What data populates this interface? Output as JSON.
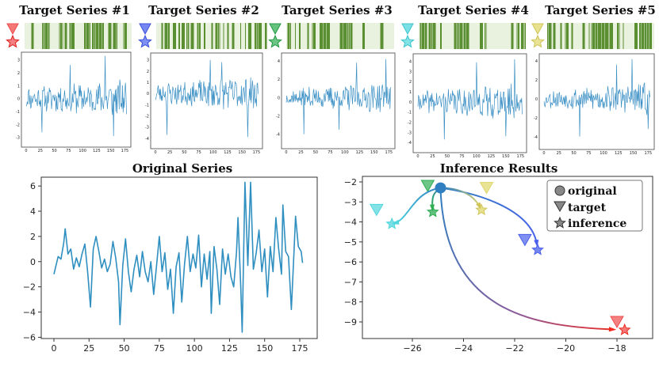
{
  "panels": [
    {
      "title": "Target Series #1",
      "color": "#ef4b4b"
    },
    {
      "title": "Target Series #2",
      "color": "#4a5fec"
    },
    {
      "title": "Target Series #3",
      "color": "#2fae52"
    },
    {
      "title": "Target Series #4",
      "color": "#4fd6dc"
    },
    {
      "title": "Target Series #5",
      "color": "#e0d76a"
    }
  ],
  "barcode_colors": {
    "dark": "#5a8f32",
    "light": "#e9f1df"
  },
  "chart_data": [
    {
      "type": "line",
      "title": "Original Series",
      "x_start": 0,
      "x_end": 178,
      "xticks": [
        0,
        25,
        50,
        75,
        100,
        125,
        150,
        175
      ],
      "yticks": [
        -6,
        -4,
        -2,
        0,
        2,
        4,
        6
      ],
      "ylim": [
        -6.1,
        6.7
      ],
      "line_color": "#2f8fc0",
      "anchors": [
        [
          0,
          -1.0
        ],
        [
          3,
          0.4
        ],
        [
          5,
          0.2
        ],
        [
          7,
          1.5
        ],
        [
          8,
          2.6
        ],
        [
          10,
          0.6
        ],
        [
          12,
          1.0
        ],
        [
          14,
          -0.6
        ],
        [
          16,
          0.3
        ],
        [
          18,
          -0.4
        ],
        [
          20,
          0.6
        ],
        [
          22,
          1.4
        ],
        [
          24,
          -0.8
        ],
        [
          26,
          -3.6
        ],
        [
          28,
          1.0
        ],
        [
          30,
          2.0
        ],
        [
          32,
          0.8
        ],
        [
          34,
          -0.5
        ],
        [
          36,
          0.2
        ],
        [
          38,
          -0.8
        ],
        [
          40,
          -0.2
        ],
        [
          42,
          1.6
        ],
        [
          44,
          0.3
        ],
        [
          46,
          -1.6
        ],
        [
          47,
          -5.0
        ],
        [
          49,
          -0.3
        ],
        [
          51,
          1.8
        ],
        [
          53,
          -0.8
        ],
        [
          55,
          -2.4
        ],
        [
          57,
          -0.6
        ],
        [
          59,
          0.5
        ],
        [
          61,
          -1.2
        ],
        [
          63,
          0.8
        ],
        [
          65,
          -0.8
        ],
        [
          67,
          -1.6
        ],
        [
          69,
          0.0
        ],
        [
          71,
          -2.6
        ],
        [
          73,
          -0.4
        ],
        [
          75,
          2.0
        ],
        [
          77,
          -0.8
        ],
        [
          79,
          0.7
        ],
        [
          81,
          -2.2
        ],
        [
          83,
          -0.6
        ],
        [
          85,
          -4.1
        ],
        [
          87,
          -0.4
        ],
        [
          89,
          0.7
        ],
        [
          91,
          -3.2
        ],
        [
          93,
          -0.2
        ],
        [
          95,
          2.0
        ],
        [
          97,
          -0.8
        ],
        [
          99,
          0.6
        ],
        [
          101,
          -0.5
        ],
        [
          103,
          2.1
        ],
        [
          105,
          -2.0
        ],
        [
          107,
          0.6
        ],
        [
          109,
          -1.4
        ],
        [
          111,
          0.8
        ],
        [
          112,
          -4.1
        ],
        [
          114,
          1.2
        ],
        [
          116,
          -0.6
        ],
        [
          118,
          -3.4
        ],
        [
          120,
          1.0
        ],
        [
          122,
          -1.0
        ],
        [
          124,
          0.6
        ],
        [
          126,
          -1.2
        ],
        [
          128,
          -2.0
        ],
        [
          130,
          0.8
        ],
        [
          131,
          3.5
        ],
        [
          133,
          -2.0
        ],
        [
          134,
          -5.6
        ],
        [
          136,
          6.3
        ],
        [
          138,
          -0.3
        ],
        [
          140,
          6.3
        ],
        [
          142,
          -0.6
        ],
        [
          144,
          0.7
        ],
        [
          146,
          2.5
        ],
        [
          148,
          -0.8
        ],
        [
          150,
          1.0
        ],
        [
          152,
          -2.8
        ],
        [
          154,
          1.2
        ],
        [
          156,
          -0.8
        ],
        [
          158,
          3.5
        ],
        [
          160,
          1.0
        ],
        [
          162,
          -1.0
        ],
        [
          163,
          4.5
        ],
        [
          165,
          0.8
        ],
        [
          167,
          0.4
        ],
        [
          169,
          -3.8
        ],
        [
          171,
          1.0
        ],
        [
          172,
          3.6
        ],
        [
          174,
          1.2
        ],
        [
          176,
          0.8
        ],
        [
          177,
          -0.1
        ]
      ]
    },
    {
      "type": "scatter",
      "title": "Inference Results",
      "xticks": [
        -26,
        -24,
        -22,
        -20,
        -18
      ],
      "yticks": [
        -2,
        -3,
        -4,
        -5,
        -6,
        -7,
        -8,
        -9
      ],
      "xlim": [
        -28.0,
        -16.8
      ],
      "ylim": [
        -10.1,
        -1.7
      ],
      "origin": {
        "x": -24.9,
        "y": -2.3,
        "color": "#2f7fc1"
      },
      "targets": [
        {
          "series": 1,
          "target": [
            -18.0,
            -9.0
          ],
          "inference": [
            -17.7,
            -9.4
          ]
        },
        {
          "series": 2,
          "target": [
            -21.6,
            -4.9
          ],
          "inference": [
            -21.1,
            -5.4
          ]
        },
        {
          "series": 3,
          "target": [
            -25.4,
            -2.2
          ],
          "inference": [
            -25.2,
            -3.5
          ]
        },
        {
          "series": 4,
          "target": [
            -27.4,
            -3.4
          ],
          "inference": [
            -26.8,
            -4.1
          ]
        },
        {
          "series": 5,
          "target": [
            -23.1,
            -2.3
          ],
          "inference": [
            -23.3,
            -3.4
          ]
        }
      ],
      "legend": {
        "position": "upper-right",
        "entries": [
          "original",
          "target",
          "inference"
        ]
      }
    }
  ],
  "small_series": [
    {
      "xticks": [
        0,
        25,
        50,
        75,
        100,
        125,
        150,
        175
      ],
      "yticks": [
        -3,
        -2,
        -1,
        0,
        1,
        2,
        3
      ],
      "ylim": [
        -3.2,
        3.4
      ],
      "seed": 11,
      "amp": 1.1,
      "spikes": [
        [
          28,
          -2.6
        ],
        [
          78,
          2.6
        ],
        [
          140,
          3.3
        ],
        [
          155,
          -2.9
        ]
      ]
    },
    {
      "xticks": [
        0,
        25,
        50,
        75,
        100,
        125,
        150,
        175
      ],
      "yticks": [
        -4,
        -3,
        -2,
        -1,
        0,
        1,
        2,
        3
      ],
      "ylim": [
        -4.3,
        3.4
      ],
      "seed": 23,
      "amp": 1.2,
      "spikes": [
        [
          20,
          -3.7
        ],
        [
          95,
          3.0
        ],
        [
          115,
          2.8
        ],
        [
          160,
          -3.9
        ]
      ]
    },
    {
      "xticks": [
        0,
        25,
        50,
        75,
        100,
        125,
        150,
        175
      ],
      "yticks": [
        -4,
        -2,
        0,
        2,
        4
      ],
      "ylim": [
        -4.8,
        4.6
      ],
      "seed": 37,
      "amp": 1.3,
      "spikes": [
        [
          30,
          -4.0
        ],
        [
          120,
          3.8
        ],
        [
          170,
          4.2
        ],
        [
          90,
          -3.5
        ]
      ]
    },
    {
      "xticks": [
        0,
        25,
        50,
        75,
        100,
        125,
        150,
        175
      ],
      "yticks": [
        -4,
        -3,
        -2,
        -1,
        0,
        1,
        2,
        3,
        4
      ],
      "ylim": [
        -4.3,
        4.5
      ],
      "seed": 41,
      "amp": 1.4,
      "spikes": [
        [
          45,
          -3.7
        ],
        [
          100,
          3.9
        ],
        [
          150,
          -3.4
        ],
        [
          165,
          4.2
        ]
      ]
    },
    {
      "xticks": [
        0,
        25,
        50,
        75,
        100,
        125,
        150,
        175
      ],
      "yticks": [
        -4,
        -2,
        0,
        2,
        4
      ],
      "ylim": [
        -4.6,
        4.5
      ],
      "seed": 53,
      "amp": 1.3,
      "spikes": [
        [
          60,
          -4.0
        ],
        [
          122,
          3.6
        ],
        [
          148,
          4.2
        ],
        [
          175,
          -3.2
        ]
      ]
    }
  ]
}
